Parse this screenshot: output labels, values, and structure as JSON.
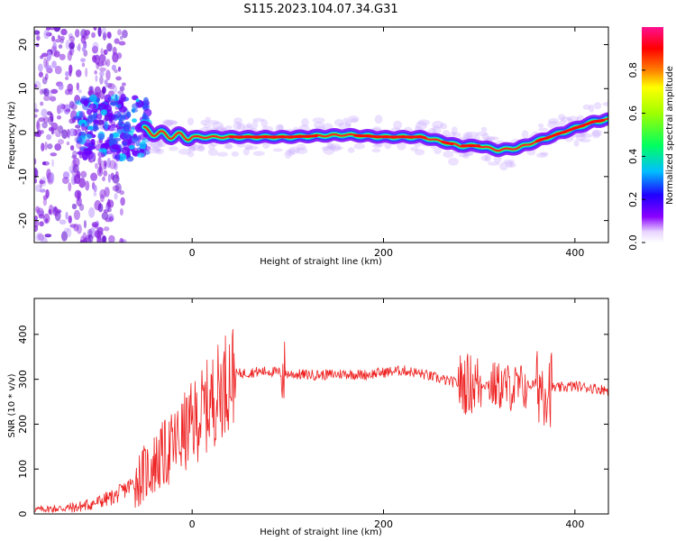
{
  "title": "S115.2023.104.07.34.G31",
  "chart_data": [
    {
      "type": "heatmap",
      "xlabel": "Height of straight line (km)",
      "ylabel": "Frequency (Hz)",
      "xlim": [
        -165,
        435
      ],
      "ylim": [
        -25,
        24
      ],
      "x_ticks": [
        "0",
        "200",
        "400"
      ],
      "x_tick_values": [
        0,
        200,
        400
      ],
      "y_ticks": [
        "20",
        "10",
        "0",
        "-10",
        "-20"
      ],
      "y_tick_values": [
        20,
        10,
        0,
        -10,
        -20
      ],
      "colorbar": {
        "label": "Normalized spectral amplitude",
        "range": [
          0,
          1
        ],
        "ticks": [
          "0.0",
          "0.2",
          "0.4",
          "0.6",
          "0.8"
        ],
        "tick_values": [
          0.0,
          0.2,
          0.4,
          0.6,
          0.8
        ],
        "colormap": "rainbow (purple-blue-cyan-green-yellow-red-pink)"
      },
      "ridge": {
        "x": [
          -50,
          -30,
          0,
          40,
          100,
          160,
          200,
          240,
          260,
          280,
          300,
          320,
          340,
          360,
          380,
          400,
          420,
          435
        ],
        "y": [
          0.5,
          -0.5,
          -1,
          -1,
          -1,
          -0.5,
          -1,
          -1,
          -2,
          -3,
          -3,
          -4,
          -3.5,
          -2,
          -0.5,
          1,
          2.5,
          3
        ]
      }
    },
    {
      "type": "line",
      "xlabel": "Height of straight line (km)",
      "ylabel": "SNR (10 * v/v)",
      "xlim": [
        -165,
        435
      ],
      "ylim": [
        0,
        480
      ],
      "x_ticks": [
        "0",
        "200",
        "400"
      ],
      "x_tick_values": [
        0,
        200,
        400
      ],
      "y_ticks": [
        "0",
        "100",
        "200",
        "300",
        "400"
      ],
      "y_tick_values": [
        0,
        100,
        200,
        300,
        400
      ],
      "color": "#ee2222",
      "series": [
        {
          "x": [
            -165,
            -140,
            -120,
            -100,
            -80,
            -60,
            -40,
            -20,
            0,
            20,
            40,
            60,
            80,
            100,
            120,
            140,
            160,
            180,
            200,
            220,
            240,
            260,
            280,
            300,
            320,
            340,
            360,
            380,
            400,
            420,
            435
          ],
          "y": [
            10,
            12,
            15,
            25,
            40,
            70,
            110,
            150,
            200,
            250,
            310,
            315,
            318,
            312,
            310,
            310,
            312,
            310,
            315,
            320,
            312,
            300,
            290,
            290,
            285,
            280,
            290,
            280,
            285,
            280,
            275
          ]
        }
      ]
    }
  ]
}
